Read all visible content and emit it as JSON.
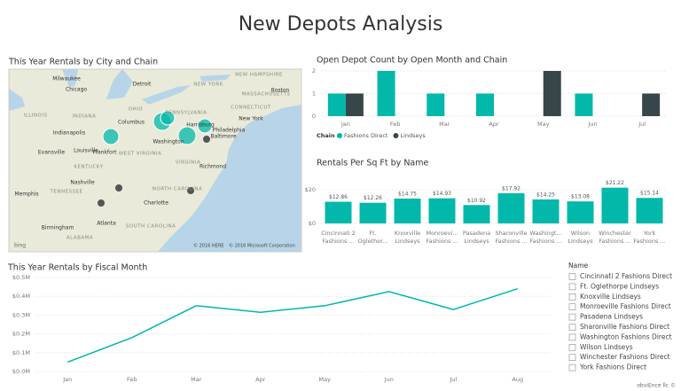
{
  "title": "New Depots Analysis",
  "map": {
    "title": "This Year Rentals by City and Chain",
    "labels": [
      "Milwaukee",
      "Chicago",
      "Detroit",
      "ILLINOIS",
      "INDIANA",
      "OHIO",
      "Indianapolis",
      "Columbus",
      "PENNSYLVANIA",
      "NEW YORK",
      "New York",
      "Philadelphia",
      "Harrisburg",
      "Baltimore",
      "Washington",
      "WEST VIRGINIA",
      "VIRGINIA",
      "Richmond",
      "KENTUCKY",
      "Louisville",
      "Frankfort",
      "Evansville",
      "TENNESSEE",
      "Memphis",
      "Nashville",
      "NORTH CAROLINA",
      "Charlotte",
      "SOUTH CAROLINA",
      "ALABAMA",
      "Atlanta",
      "Birmingham",
      "NEW HAMPSHIRE",
      "MASSACHUSETTS",
      "CONNECTICUT",
      "Boston"
    ],
    "attribution": [
      "© 2016 HERE",
      "© 2016 Microsoft Corporation"
    ],
    "logo": "bing"
  },
  "chart_data": [
    {
      "type": "grouped-bar",
      "title": "Open Depot Count by Open Month and Chain",
      "categories": [
        "Jan",
        "Feb",
        "Mar",
        "Apr",
        "May",
        "Jun",
        "Jul"
      ],
      "series": [
        {
          "name": "Fashions Direct",
          "color": "#01b8aa",
          "values": [
            1,
            2,
            1,
            1,
            null,
            1,
            null
          ]
        },
        {
          "name": "Lindseys",
          "color": "#374649",
          "values": [
            1,
            null,
            null,
            null,
            2,
            null,
            1
          ]
        }
      ],
      "legend_title": "Chain",
      "ylim": [
        0,
        2
      ],
      "yticks": [
        0,
        1,
        2
      ],
      "grid": true
    },
    {
      "type": "bar",
      "title": "Rentals Per Sq Ft by Name",
      "categories": [
        [
          "Cincinnati 2",
          "Fashions ..."
        ],
        [
          "Ft.",
          "Oglethor..."
        ],
        [
          "Knoxville",
          "Lindseys"
        ],
        [
          "Monroevi...",
          "Fashions ..."
        ],
        [
          "Pasadena",
          "Lindseys"
        ],
        [
          "Sharonville",
          "Fashions ..."
        ],
        [
          "Washingt...",
          "Fashions ..."
        ],
        [
          "Wilson",
          "Lindseys"
        ],
        [
          "Winchester",
          "Fashions ..."
        ],
        [
          "York",
          "Fashions ..."
        ]
      ],
      "values": [
        12.86,
        12.26,
        14.75,
        14.93,
        10.92,
        17.92,
        14.25,
        13.08,
        21.22,
        15.14
      ],
      "value_labels": [
        "$12.86",
        "$12.26",
        "$14.75",
        "$14.93",
        "$10.92",
        "$17.92",
        "$14.25",
        "$13.08",
        "$21.22",
        "$15.14"
      ],
      "color": "#01b8aa",
      "ylim": [
        0,
        25
      ],
      "yticks": [
        {
          "value": 0,
          "label": "$0"
        },
        {
          "value": 20,
          "label": "$20"
        }
      ],
      "grid": true
    },
    {
      "type": "line",
      "title": "This Year Rentals by Fiscal Month",
      "categories": [
        "Jan",
        "Feb",
        "Mar",
        "Apr",
        "May",
        "Jun",
        "Jul",
        "Aug"
      ],
      "values": [
        50000,
        180000,
        350000,
        315000,
        350000,
        425000,
        330000,
        440000
      ],
      "color": "#01b8aa",
      "ylim": [
        0,
        500000
      ],
      "yticks": [
        {
          "value": 0,
          "label": "$0.0M"
        },
        {
          "value": 100000,
          "label": "$0.1M"
        },
        {
          "value": 200000,
          "label": "$0.2M"
        },
        {
          "value": 300000,
          "label": "$0.3M"
        },
        {
          "value": 400000,
          "label": "$0.4M"
        },
        {
          "value": 500000,
          "label": "$0.5M"
        }
      ],
      "grid": true
    }
  ],
  "slicer": {
    "title": "Name",
    "items": [
      "Cincinnati 2 Fashions Direct",
      "Ft. Oglethorpe Lindseys",
      "Knoxville Lindseys",
      "Monroeville Fashions Direct",
      "Pasadena Lindseys",
      "Sharonville Fashions Direct",
      "Washington Fashions Direct",
      "Wilson Lindseys",
      "Winchester Fashions Direct",
      "York Fashions Direct"
    ]
  },
  "footer": "obviEnce llc ©"
}
